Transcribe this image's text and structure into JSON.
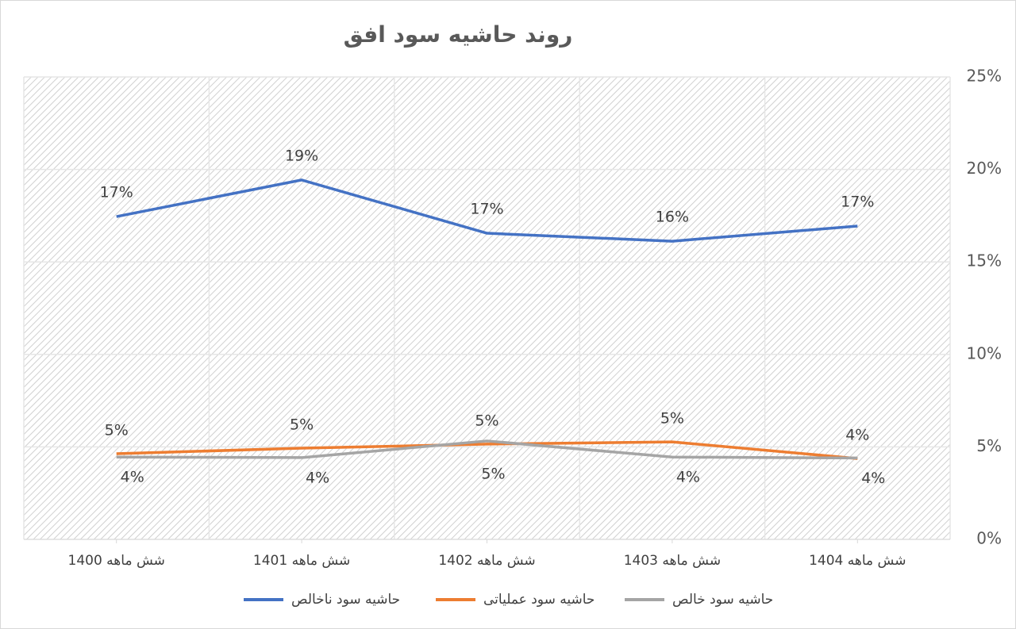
{
  "chart_data": {
    "type": "line",
    "title": "روند حاشیه سود افق",
    "categories": [
      "شش ماهه 1400",
      "شش ماهه 1401",
      "شش ماهه 1402",
      "شش ماهه 1403",
      "شش ماهه 1404"
    ],
    "series": [
      {
        "name": "حاشیه سود ناخالص",
        "color": "#4472c4",
        "values": [
          17.45,
          19.43,
          16.55,
          16.12,
          16.94
        ],
        "value_labels": [
          "17%",
          "19%",
          "17%",
          "16%",
          "17%"
        ]
      },
      {
        "name": "حاشیه سود عملیاتی",
        "color": "#ed7d31",
        "values": [
          4.63,
          4.93,
          5.15,
          5.27,
          4.37
        ],
        "value_labels": [
          "5%",
          "5%",
          "5%",
          "5%",
          "4%"
        ]
      },
      {
        "name": "حاشیه سود خالص",
        "color": "#a5a5a5",
        "values": [
          4.45,
          4.42,
          5.32,
          4.45,
          4.4
        ],
        "value_labels": [
          "4%",
          "4%",
          "5%",
          "4%",
          "4%"
        ]
      }
    ],
    "ylim": [
      0,
      25
    ],
    "yticks": [
      {
        "value": 0,
        "label": "0%"
      },
      {
        "value": 5,
        "label": "5%"
      },
      {
        "value": 10,
        "label": "10%"
      },
      {
        "value": 15,
        "label": "15%"
      },
      {
        "value": 20,
        "label": "20%"
      },
      {
        "value": 25,
        "label": "25%"
      }
    ],
    "y_axis_side": "right",
    "grid": true
  }
}
